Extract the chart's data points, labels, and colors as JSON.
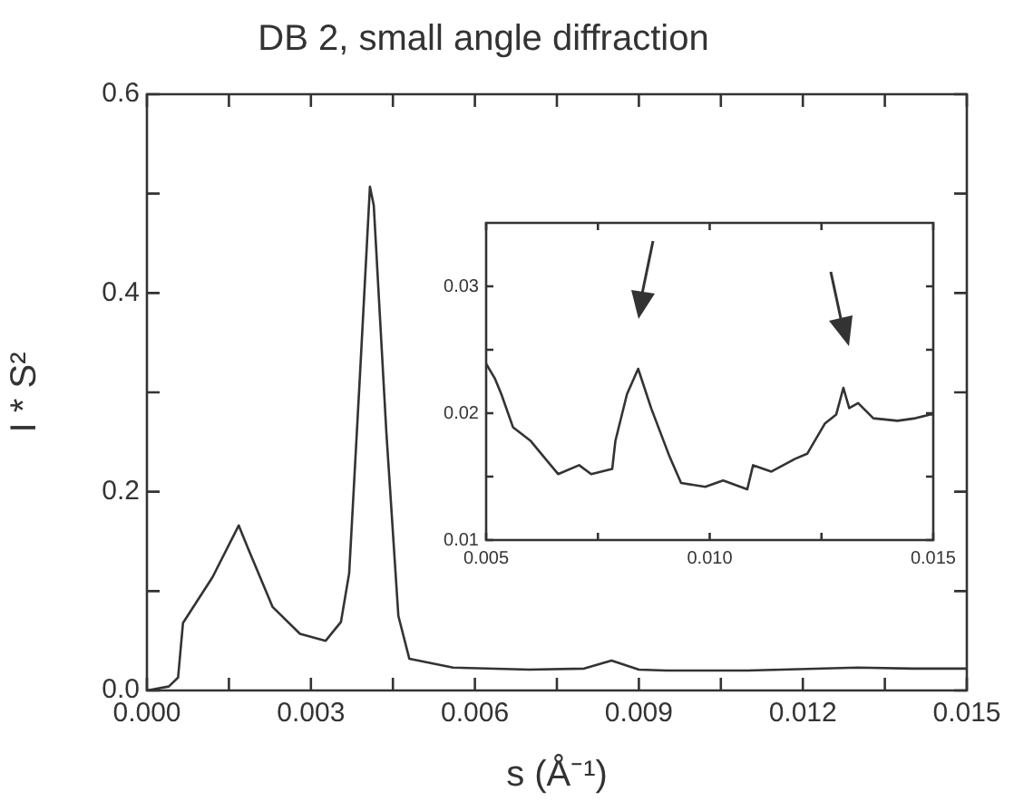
{
  "chart_data": [
    {
      "type": "line",
      "title": "DB 2, small angle diffraction",
      "xlabel": "s (Å⁻¹)",
      "ylabel": "I * S²",
      "color": "#333333",
      "marker": "none",
      "grid": false,
      "legend": false,
      "x": [
        0,
        0.0004,
        0.00057,
        0.00066,
        0.0012,
        0.00168,
        0.00185,
        0.0023,
        0.0028,
        0.00327,
        0.00355,
        0.0037,
        0.0039,
        0.00408,
        0.00415,
        0.00438,
        0.0046,
        0.0048,
        0.0056,
        0.007,
        0.008,
        0.0085,
        0.009,
        0.0095,
        0.011,
        0.013,
        0.014,
        0.015
      ],
      "values": [
        0,
        0.004,
        0.013,
        0.068,
        0.114,
        0.166,
        0.143,
        0.084,
        0.057,
        0.05,
        0.069,
        0.118,
        0.32,
        0.507,
        0.488,
        0.26,
        0.075,
        0.032,
        0.023,
        0.021,
        0.022,
        0.03,
        0.021,
        0.02,
        0.02,
        0.023,
        0.022,
        0.022
      ],
      "xlim": [
        0,
        0.015
      ],
      "ylim": [
        0,
        0.6
      ],
      "xticks": [
        {
          "value": 0,
          "label": "0.000"
        },
        {
          "value": 0.0015,
          "label": null
        },
        {
          "value": 0.003,
          "label": "0.003"
        },
        {
          "value": 0.0045,
          "label": null
        },
        {
          "value": 0.006,
          "label": "0.006"
        },
        {
          "value": 0.0075,
          "label": null
        },
        {
          "value": 0.009,
          "label": "0.009"
        },
        {
          "value": 0.0105,
          "label": null
        },
        {
          "value": 0.012,
          "label": "0.012"
        },
        {
          "value": 0.0135,
          "label": null
        },
        {
          "value": 0.015,
          "label": "0.015"
        }
      ],
      "yticks": [
        {
          "value": 0,
          "label": "0.0"
        },
        {
          "value": 0.1,
          "label": null
        },
        0.2,
        {
          "value": 0.3,
          "label": null
        },
        0.4,
        {
          "value": 0.5,
          "label": null
        },
        0.6
      ]
    },
    {
      "type": "line",
      "color": "#333333",
      "marker": "none",
      "grid": false,
      "legend": false,
      "x": [
        0.005,
        0.0052,
        0.00534,
        0.0056,
        0.006,
        0.00628,
        0.00661,
        0.00708,
        0.00735,
        0.00782,
        0.00789,
        0.00815,
        0.0084,
        0.00869,
        0.0091,
        0.00936,
        0.0099,
        0.0103,
        0.01084,
        0.01097,
        0.01138,
        0.01191,
        0.01218,
        0.01258,
        0.01283,
        0.01299,
        0.01312,
        0.01332,
        0.01366,
        0.0142,
        0.0146,
        0.01493,
        0.015
      ],
      "values": [
        0.0239,
        0.0227,
        0.0215,
        0.0189,
        0.0178,
        0.0166,
        0.0152,
        0.0159,
        0.0152,
        0.0156,
        0.0178,
        0.0215,
        0.0235,
        0.0204,
        0.0166,
        0.0145,
        0.0142,
        0.0147,
        0.014,
        0.0159,
        0.0154,
        0.0164,
        0.0168,
        0.0192,
        0.0199,
        0.022,
        0.0204,
        0.0208,
        0.0196,
        0.0194,
        0.0196,
        0.0199,
        0.0199
      ],
      "xlim": [
        0.005,
        0.015
      ],
      "ylim": [
        0.01,
        0.035
      ],
      "xticks": [
        {
          "value": 0.005,
          "label": "0.005"
        },
        {
          "value": 0.0075,
          "label": null
        },
        {
          "value": 0.01,
          "label": "0.010"
        },
        {
          "value": 0.0125,
          "label": null
        },
        {
          "value": 0.015,
          "label": "0.015"
        }
      ],
      "yticks": [
        0.01,
        {
          "value": 0.015,
          "label": null
        },
        0.02,
        {
          "value": 0.025,
          "label": null
        },
        0.03
      ]
    }
  ]
}
